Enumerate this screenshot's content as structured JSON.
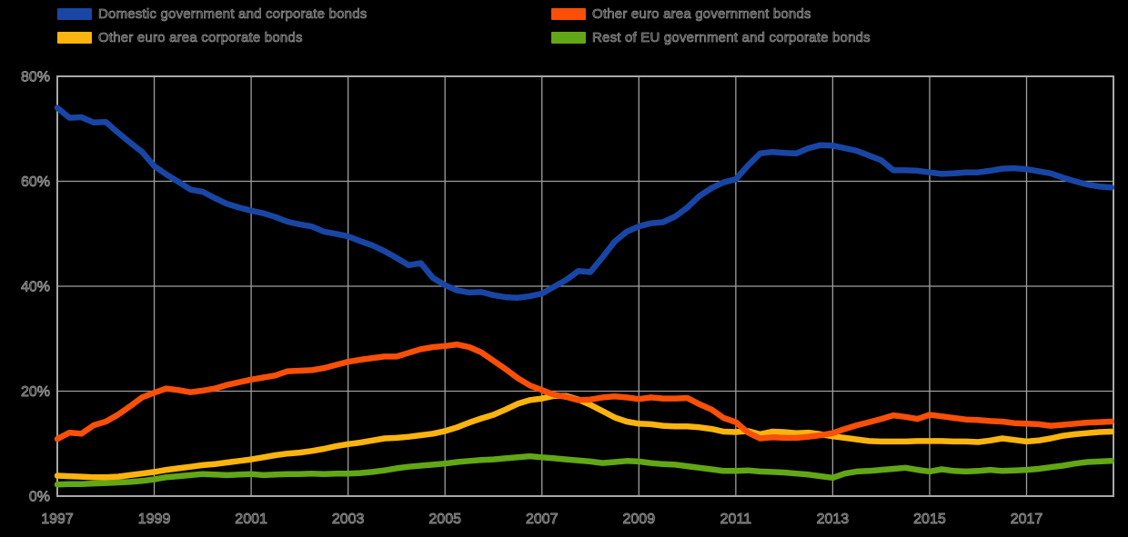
{
  "chart_data": {
    "type": "line",
    "title": "",
    "x_start": 1997,
    "x_step_years": 0.25,
    "x_end": 2018.75,
    "x_tick_years": [
      1997,
      1999,
      2001,
      2003,
      2005,
      2007,
      2009,
      2011,
      2013,
      2015,
      2017
    ],
    "ylim": [
      0,
      80
    ],
    "y_ticks": [
      0,
      20,
      40,
      60,
      80
    ],
    "y_tick_suffix": "%",
    "grid": true,
    "legend_position": "top",
    "series": [
      {
        "name": "Domestic government and corporate bonds",
        "color": "#1946a5",
        "values": [
          74.0,
          72.1,
          72.2,
          71.2,
          71.3,
          69.3,
          67.4,
          65.6,
          62.9,
          61.3,
          59.9,
          58.4,
          58.0,
          56.8,
          55.7,
          55.0,
          54.4,
          53.9,
          53.2,
          52.3,
          51.8,
          51.4,
          50.4,
          50.0,
          49.5,
          48.6,
          47.8,
          46.7,
          45.4,
          44.0,
          44.4,
          41.6,
          40.2,
          39.2,
          38.8,
          38.9,
          38.3,
          37.9,
          37.8,
          38.1,
          38.6,
          39.9,
          41.2,
          42.9,
          42.7,
          45.5,
          48.5,
          50.4,
          51.4,
          52.0,
          52.2,
          53.3,
          55.0,
          57.2,
          58.7,
          59.8,
          60.4,
          63.0,
          65.3,
          65.6,
          65.4,
          65.3,
          66.3,
          66.9,
          66.8,
          66.3,
          65.8,
          64.9,
          64.0,
          62.1,
          62.1,
          62.0,
          61.7,
          61.4,
          61.5,
          61.7,
          61.7,
          62.0,
          62.4,
          62.5,
          62.3,
          61.9,
          61.5,
          60.7,
          60.0,
          59.4,
          59.0,
          58.8
        ]
      },
      {
        "name": "Other euro area government bonds",
        "color": "#f94f08",
        "values": [
          10.9,
          12.1,
          11.9,
          13.5,
          14.2,
          15.5,
          17.1,
          18.8,
          19.7,
          20.5,
          20.2,
          19.8,
          20.1,
          20.5,
          21.2,
          21.7,
          22.2,
          22.6,
          23.0,
          23.8,
          23.9,
          24.0,
          24.4,
          25.0,
          25.6,
          26.0,
          26.3,
          26.6,
          26.6,
          27.3,
          28.0,
          28.4,
          28.6,
          28.9,
          28.4,
          27.4,
          25.8,
          24.2,
          22.5,
          21.1,
          20.2,
          19.3,
          18.9,
          18.3,
          18.4,
          18.8,
          19.0,
          18.8,
          18.5,
          18.8,
          18.6,
          18.6,
          18.7,
          17.5,
          16.5,
          14.9,
          14.1,
          12.1,
          11.0,
          11.2,
          11.1,
          11.1,
          11.3,
          11.6,
          12.0,
          12.8,
          13.5,
          14.1,
          14.7,
          15.4,
          15.1,
          14.7,
          15.5,
          15.2,
          14.9,
          14.6,
          14.5,
          14.3,
          14.2,
          13.9,
          13.8,
          13.7,
          13.4,
          13.6,
          13.8,
          14.0,
          14.1,
          14.2
        ]
      },
      {
        "name": "Other euro area corporate bonds",
        "color": "#fbb40e",
        "values": [
          3.9,
          3.8,
          3.7,
          3.6,
          3.6,
          3.7,
          4.0,
          4.3,
          4.6,
          5.0,
          5.3,
          5.6,
          5.9,
          6.1,
          6.4,
          6.7,
          7.0,
          7.4,
          7.8,
          8.1,
          8.3,
          8.6,
          9.0,
          9.5,
          9.9,
          10.2,
          10.6,
          11.0,
          11.1,
          11.3,
          11.6,
          11.9,
          12.4,
          13.1,
          14.0,
          14.8,
          15.5,
          16.5,
          17.6,
          18.3,
          18.6,
          19.1,
          19.1,
          18.4,
          17.4,
          16.2,
          15.0,
          14.2,
          13.8,
          13.7,
          13.4,
          13.3,
          13.3,
          13.1,
          12.8,
          12.3,
          12.2,
          12.4,
          11.8,
          12.3,
          12.2,
          12.0,
          12.1,
          11.8,
          11.4,
          11.1,
          10.8,
          10.5,
          10.4,
          10.4,
          10.4,
          10.5,
          10.5,
          10.5,
          10.4,
          10.4,
          10.3,
          10.6,
          11.0,
          10.7,
          10.4,
          10.6,
          11.0,
          11.5,
          11.8,
          12.0,
          12.2,
          12.3
        ]
      },
      {
        "name": "Rest of EU government and corporate bonds",
        "color": "#62a715",
        "values": [
          2.2,
          2.3,
          2.3,
          2.4,
          2.5,
          2.6,
          2.7,
          2.9,
          3.2,
          3.6,
          3.8,
          4.0,
          4.2,
          4.1,
          4.0,
          4.1,
          4.2,
          4.0,
          4.1,
          4.2,
          4.2,
          4.3,
          4.2,
          4.3,
          4.3,
          4.4,
          4.6,
          4.9,
          5.3,
          5.6,
          5.8,
          6.0,
          6.2,
          6.5,
          6.7,
          6.9,
          7.0,
          7.2,
          7.4,
          7.6,
          7.4,
          7.2,
          7.0,
          6.8,
          6.6,
          6.3,
          6.5,
          6.7,
          6.6,
          6.3,
          6.1,
          6.0,
          5.7,
          5.4,
          5.1,
          4.8,
          4.8,
          4.9,
          4.7,
          4.6,
          4.5,
          4.3,
          4.1,
          3.8,
          3.5,
          4.3,
          4.7,
          4.8,
          5.0,
          5.2,
          5.4,
          5.0,
          4.7,
          5.1,
          4.8,
          4.7,
          4.8,
          5.0,
          4.8,
          4.9,
          5.0,
          5.2,
          5.5,
          5.8,
          6.2,
          6.5,
          6.6,
          6.7
        ]
      }
    ]
  },
  "style": {
    "background": "#000000",
    "grid_color": "#9e9e9e",
    "border_color": "#a8a8a8",
    "tick_text_fill": "#202020",
    "tick_text_stroke": "#8f8f8f",
    "line_width": 6.5
  }
}
